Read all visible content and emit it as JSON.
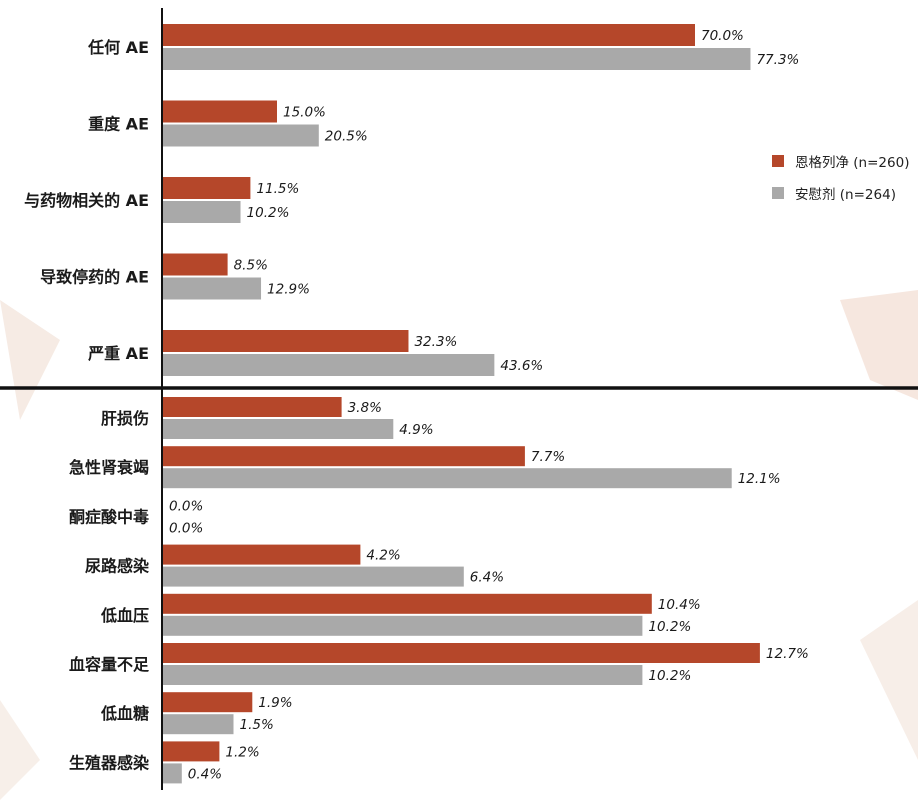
{
  "colors": {
    "series_1": "#b5472a",
    "series_2": "#a9a9a9",
    "axis": "#111111",
    "background_decoration": "#f3e3da"
  },
  "chart_data": [
    {
      "type": "bar",
      "orientation": "horizontal",
      "categories": [
        "任何 AE",
        "重度 AE",
        "与药物相关的 AE",
        "导致停药的 AE",
        "严重 AE"
      ],
      "series": [
        {
          "name": "恩格列净 (n=260)",
          "values": [
            70.0,
            15.0,
            11.5,
            8.5,
            32.3
          ],
          "labels": [
            "70.0%",
            "15.0%",
            "11.5%",
            "8.5%",
            "32.3%"
          ]
        },
        {
          "name": "安慰剂 (n=264)",
          "values": [
            77.3,
            20.5,
            10.2,
            12.9,
            43.6
          ],
          "labels": [
            "77.3%",
            "20.5%",
            "10.2%",
            "12.9%",
            "43.6%"
          ]
        }
      ],
      "xlim": [
        0,
        100
      ],
      "grid": false,
      "legend": "right",
      "value_suffix": "%"
    },
    {
      "type": "bar",
      "orientation": "horizontal",
      "categories": [
        "肝损伤",
        "急性肾衰竭",
        "酮症酸中毒",
        "尿路感染",
        "低血压",
        "血容量不足",
        "低血糖",
        "生殖器感染"
      ],
      "series": [
        {
          "name": "恩格列净 (n=260)",
          "values": [
            3.8,
            7.7,
            0.0,
            4.2,
            10.4,
            12.7,
            1.9,
            1.2
          ],
          "labels": [
            "3.8%",
            "7.7%",
            "0.0%",
            "4.2%",
            "10.4%",
            "12.7%",
            "1.9%",
            "1.2%"
          ]
        },
        {
          "name": "安慰剂 (n=264)",
          "values": [
            4.9,
            12.1,
            0.0,
            6.4,
            10.2,
            10.2,
            1.5,
            0.4
          ],
          "labels": [
            "4.9%",
            "12.1%",
            "0.0%",
            "6.4%",
            "10.2%",
            "10.2%",
            "1.5%",
            "0.4%"
          ]
        }
      ],
      "xlim": [
        0,
        15
      ],
      "grid": false,
      "value_suffix": "%"
    }
  ],
  "legend": {
    "items": [
      {
        "label": "恩格列净 (n=260)",
        "color": "#b5472a"
      },
      {
        "label": "安慰剂 (n=264)",
        "color": "#a9a9a9"
      }
    ]
  }
}
